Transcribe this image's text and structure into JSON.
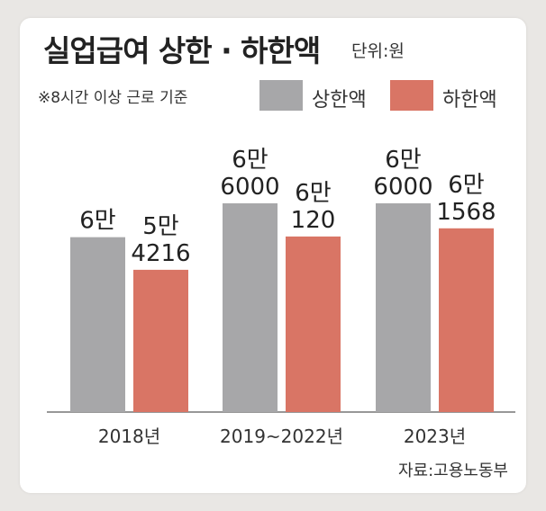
{
  "title": "실업급여 상한 · 하한액",
  "unit": "단위:원",
  "note": "※8시간 이상 근로 기준",
  "source": "자료:고용노동부",
  "colors": {
    "upper": "#a7a7a9",
    "lower": "#d97565"
  },
  "chart_data": {
    "type": "bar",
    "categories": [
      "2018년",
      "2019~2022년",
      "2023년"
    ],
    "series": [
      {
        "name": "상한액",
        "values": [
          60000,
          66000,
          66000
        ],
        "labels": [
          [
            "6만"
          ],
          [
            "6만",
            "6000"
          ],
          [
            "6만",
            "6000"
          ]
        ]
      },
      {
        "name": "하한액",
        "values": [
          54216,
          60120,
          61568
        ],
        "labels": [
          [
            "5만",
            "4216"
          ],
          [
            "6만",
            "120"
          ],
          [
            "6만",
            "1568"
          ]
        ]
      }
    ],
    "grid": false,
    "legend": "top"
  }
}
